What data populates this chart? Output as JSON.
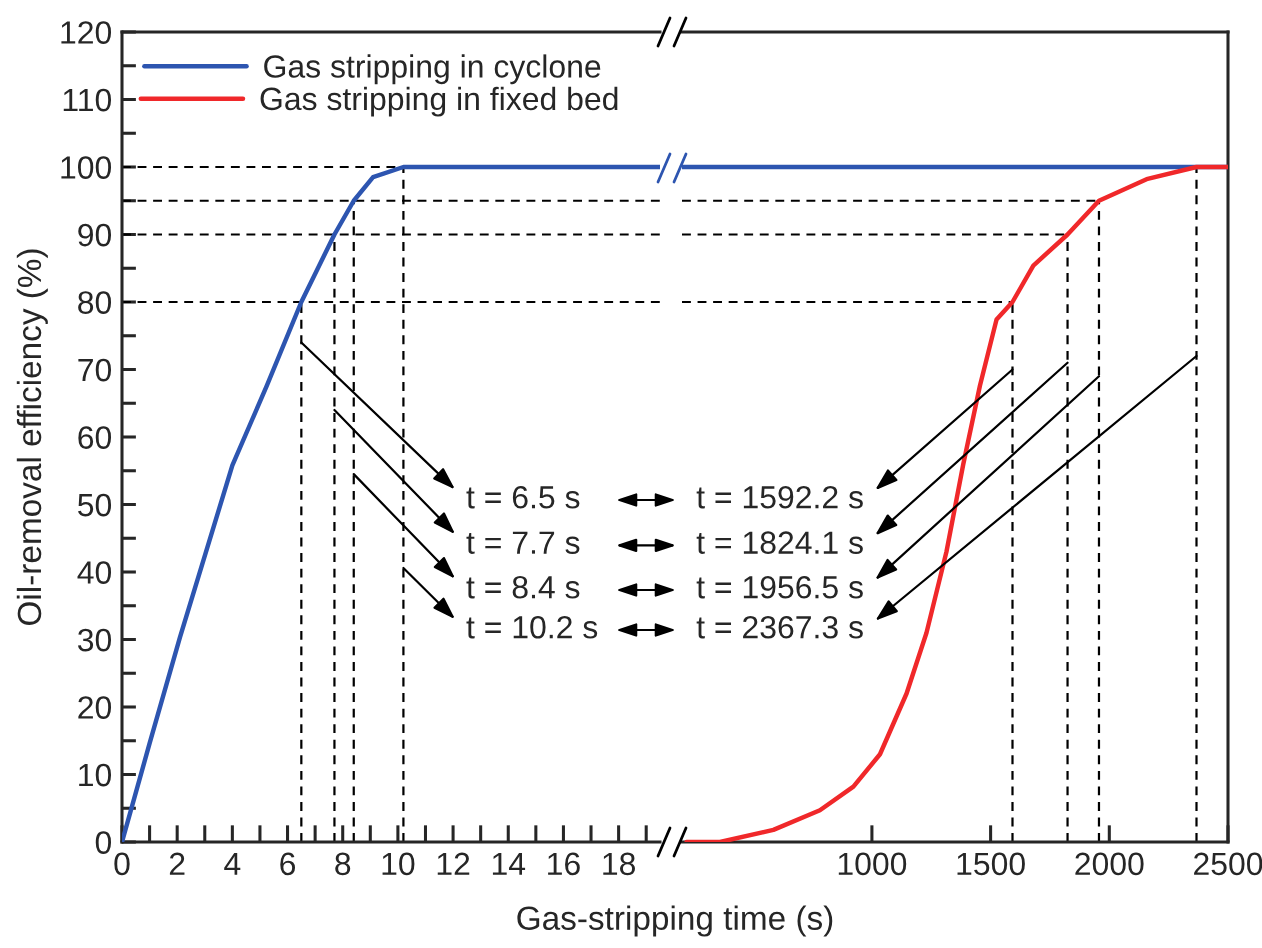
{
  "chart_data": [
    {
      "type": "line",
      "ylabel": "Oil-removal efficiency (%)",
      "xlabel": "Gas-stripping time (s)",
      "legend": "top left",
      "line_style": "solid",
      "xlim": [
        0,
        19.5
      ],
      "xticks": [
        0,
        {
          "value": 1,
          "label": null
        },
        2,
        {
          "value": 3,
          "label": null
        },
        4,
        {
          "value": 5,
          "label": null
        },
        6,
        {
          "value": 7,
          "label": null
        },
        8,
        {
          "value": 9,
          "label": null
        },
        10,
        {
          "value": 11,
          "label": null
        },
        12,
        {
          "value": 13,
          "label": null
        },
        14,
        {
          "value": 15,
          "label": null
        },
        16,
        {
          "value": 17,
          "label": null
        },
        18,
        {
          "value": 19,
          "label": null
        }
      ],
      "ylim": [
        0,
        120
      ],
      "yticks": [
        0,
        {
          "value": 5,
          "label": null
        },
        10,
        {
          "value": 15,
          "label": null
        },
        20,
        {
          "value": 25,
          "label": null
        },
        30,
        {
          "value": 35,
          "label": null
        },
        40,
        {
          "value": 45,
          "label": null
        },
        50,
        {
          "value": 55,
          "label": null
        },
        60,
        {
          "value": 65,
          "label": null
        },
        70,
        {
          "value": 75,
          "label": null
        },
        80,
        {
          "value": 85,
          "label": null
        },
        90,
        {
          "value": 95,
          "label": null
        },
        100,
        {
          "value": 105,
          "label": null
        },
        110,
        {
          "value": 115,
          "label": null
        },
        120
      ],
      "series": [
        {
          "name": "Gas stripping in cyclone",
          "color": "#2d55b0",
          "x": [
            0,
            1.0,
            2.1,
            4.0,
            5.25,
            6.5,
            7.7,
            8.4,
            9.1,
            10.2,
            19.5
          ],
          "values": [
            0,
            14.6,
            30.3,
            55.8,
            67.6,
            80,
            90,
            95,
            98.5,
            100,
            100
          ]
        }
      ],
      "ref_lines": [
        {
          "axis": "y",
          "value": 80,
          "line_style": "dashed",
          "color": "#000000"
        },
        {
          "axis": "y",
          "value": 90,
          "line_style": "dashed",
          "color": "#000000"
        },
        {
          "axis": "y",
          "value": 95,
          "line_style": "dashed",
          "color": "#000000"
        },
        {
          "axis": "y",
          "value": 100,
          "line_style": "dashed",
          "color": "#000000"
        },
        {
          "axis": "x",
          "value": 6.5,
          "line_style": "dashed",
          "color": "#000000"
        },
        {
          "axis": "x",
          "value": 7.7,
          "line_style": "dashed",
          "color": "#000000"
        },
        {
          "axis": "x",
          "value": 8.4,
          "line_style": "dashed",
          "color": "#000000"
        },
        {
          "axis": "x",
          "value": 10.2,
          "line_style": "dashed",
          "color": "#000000"
        }
      ],
      "annotations": [
        {
          "text": "t = 6.5 s",
          "x": 6.5,
          "y": 74
        },
        {
          "text": "t = 7.7 s",
          "x": 7.7,
          "y": 64
        },
        {
          "text": "t = 8.4 s",
          "x": 8.4,
          "y": 54.5
        },
        {
          "text": "t = 10.2 s",
          "x": 10.2,
          "y": 40.6
        }
      ]
    },
    {
      "type": "line",
      "legend": "top left",
      "tick_labels": "x",
      "line_style": "solid",
      "xlim": [
        200,
        2500
      ],
      "xticks": [
        1000,
        1500,
        2000,
        2500
      ],
      "ylim": [
        0,
        120
      ],
      "series": [
        {
          "color": "#2d55b0",
          "x": [
            200,
            2500
          ],
          "values": [
            100,
            100
          ]
        },
        {
          "name": "Gas stripping in fixed bed",
          "color": "#f0282a",
          "x": [
            219,
            360,
            585,
            781,
            922,
            1034,
            1146,
            1230,
            1314,
            1385,
            1455,
            1525,
            1592.2,
            1680,
            1824.1,
            1956.5,
            2157,
            2367.3,
            2500
          ],
          "values": [
            0,
            0,
            1.8,
            4.7,
            8.2,
            13,
            22,
            31,
            43,
            56,
            67.6,
            77.4,
            80,
            85.4,
            90,
            95,
            98.2,
            100,
            100
          ]
        }
      ],
      "ref_lines": [
        {
          "axis": "y",
          "value": 80,
          "line_style": "dashed",
          "color": "#000000"
        },
        {
          "axis": "y",
          "value": 90,
          "line_style": "dashed",
          "color": "#000000"
        },
        {
          "axis": "y",
          "value": 95,
          "line_style": "dashed",
          "color": "#000000"
        },
        {
          "axis": "x",
          "value": 1592.2,
          "line_style": "dashed",
          "color": "#000000"
        },
        {
          "axis": "x",
          "value": 1824.1,
          "line_style": "dashed",
          "color": "#000000"
        },
        {
          "axis": "x",
          "value": 1956.5,
          "line_style": "dashed",
          "color": "#000000"
        },
        {
          "axis": "x",
          "value": 2367.3,
          "line_style": "dashed",
          "color": "#000000"
        }
      ],
      "annotations": [
        {
          "text": "t = 1592.2 s",
          "x": 1592.2,
          "y": 70
        },
        {
          "text": "t = 1824.1 s",
          "x": 1824.1,
          "y": 71
        },
        {
          "text": "t = 1956.5 s",
          "x": 1956.5,
          "y": 69
        },
        {
          "text": "t = 2367.3 s",
          "x": 2367.3,
          "y": 72
        }
      ]
    }
  ]
}
